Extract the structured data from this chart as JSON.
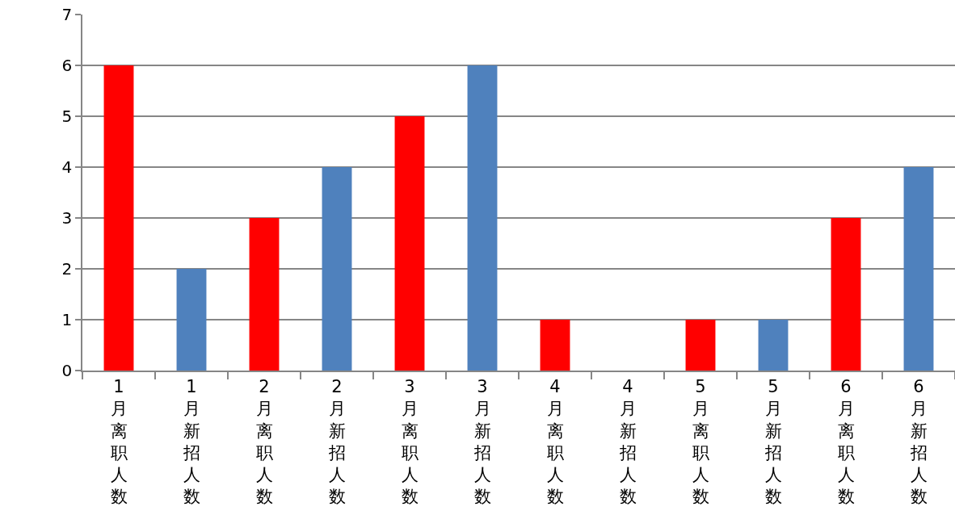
{
  "chart_data": {
    "type": "bar",
    "categories": [
      "1月离职人数",
      "1月新招人数",
      "2月离职人数",
      "2月新招人数",
      "3月离职人数",
      "3月新招人数",
      "4月离职人数",
      "4月新招人数",
      "5月离职人数",
      "5月新招人数",
      "6月离职人数",
      "6月新招人数"
    ],
    "values": [
      6,
      2,
      3,
      4,
      5,
      6,
      1,
      0,
      1,
      1,
      3,
      4
    ],
    "colors": [
      "#ff0000",
      "#4f81bd",
      "#ff0000",
      "#4f81bd",
      "#ff0000",
      "#4f81bd",
      "#ff0000",
      "#4f81bd",
      "#ff0000",
      "#4f81bd",
      "#ff0000",
      "#4f81bd"
    ],
    "ylim": [
      0,
      7
    ],
    "yticks": [
      0,
      1,
      2,
      3,
      4,
      5,
      6,
      7
    ],
    "grid": "y"
  }
}
